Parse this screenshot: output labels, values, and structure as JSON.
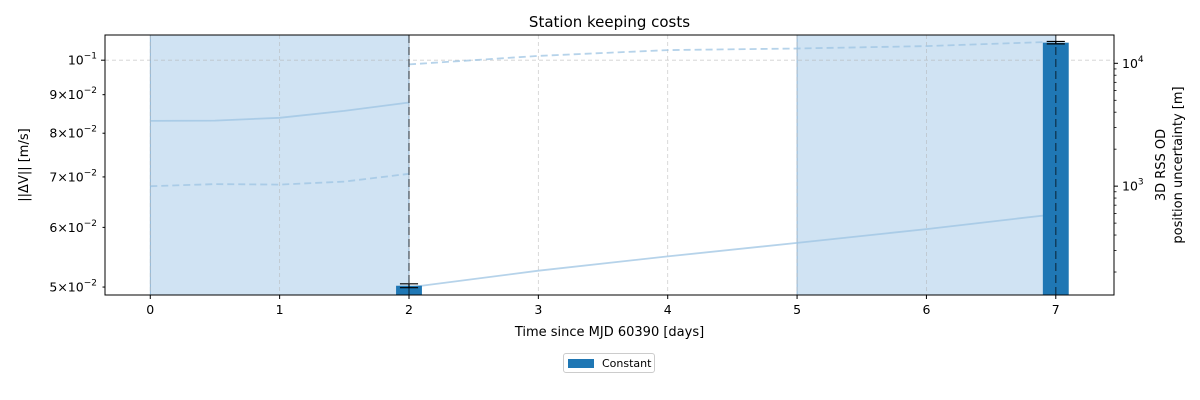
{
  "chart_data": {
    "type": "bar",
    "title": "Station keeping costs",
    "xlabel": "Time since MJD 60390 [days]",
    "ylabel": "||ΔV|| [m/s]",
    "ylabel_right_line1": "3D RSS OD",
    "ylabel_right_line2": "position uncertainty [m]",
    "xlim": [
      -0.35,
      7.45
    ],
    "ylim": [
      0.0488,
      0.108
    ],
    "ylim_right": [
      130,
      17000
    ],
    "y_scale": "log",
    "y_right_scale": "log",
    "grid": true,
    "legend_position": "bottom-center",
    "x_ticks": [
      0,
      1,
      2,
      3,
      4,
      5,
      6,
      7
    ],
    "x_tick_labels": [
      "0",
      "1",
      "2",
      "3",
      "4",
      "5",
      "6",
      "7"
    ],
    "y_ticks": [
      {
        "mantissa": "5",
        "value": 0.05
      },
      {
        "mantissa": "6",
        "value": 0.06
      },
      {
        "mantissa": "7",
        "value": 0.07
      },
      {
        "mantissa": "8",
        "value": 0.08
      },
      {
        "mantissa": "9",
        "value": 0.09
      },
      {
        "mantissa": "",
        "value": 0.1
      }
    ],
    "y_tick_base": "10",
    "y_tick_exp": "−2",
    "y_tick_exp_major": "−1",
    "y_right_ticks": [
      {
        "value": 1000,
        "exp": "3"
      },
      {
        "value": 10000,
        "exp": "4"
      }
    ],
    "shaded_intervals": [
      [
        0,
        2
      ],
      [
        5,
        7
      ]
    ],
    "vertical_dashed_lines": [
      2,
      7
    ],
    "series": [
      {
        "name": "Constant",
        "x": [
          2,
          7
        ],
        "values": [
          0.0502,
          0.1055
        ],
        "errors": [
          0.0003,
          0.0004
        ]
      }
    ],
    "uncertainty_curves": [
      {
        "style": "solid",
        "x": [
          0,
          0.5,
          1,
          1.5,
          2
        ],
        "values": [
          3400,
          3420,
          3600,
          4100,
          4800
        ]
      },
      {
        "style": "dashed",
        "x": [
          0,
          0.5,
          1,
          1.5,
          2
        ],
        "values": [
          1000,
          1040,
          1030,
          1090,
          1260
        ]
      },
      {
        "style": "dashed",
        "x": [
          2,
          3,
          4,
          5,
          6,
          7
        ],
        "values": [
          9800,
          11500,
          12800,
          13200,
          13800,
          15000
        ]
      },
      {
        "style": "solid",
        "x": [
          2,
          3,
          4,
          5,
          6,
          6.9
        ],
        "values": [
          150,
          205,
          268,
          345,
          447,
          576
        ]
      }
    ],
    "colors": {
      "bar": "#1f77b4",
      "shade": "#aaccea",
      "curve": "#9ec4e3"
    }
  }
}
